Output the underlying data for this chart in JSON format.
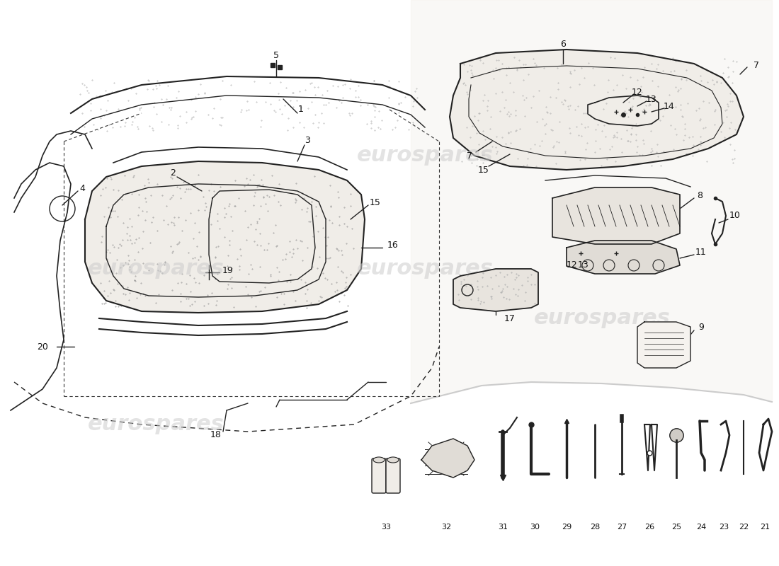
{
  "title": "",
  "background_color": "#ffffff",
  "watermark_text": "eurospares",
  "watermark_color": "#cccccc",
  "part_numbers": {
    "main_trunk": [
      "2",
      "3",
      "1",
      "4",
      "5"
    ],
    "right_panel": [
      "6",
      "7",
      "8",
      "9",
      "10",
      "11",
      "12",
      "13",
      "14",
      "15",
      "16",
      "17"
    ],
    "tools": [
      "18",
      "19",
      "20",
      "21",
      "22",
      "23",
      "24",
      "25",
      "26",
      "27",
      "28",
      "29",
      "30",
      "31",
      "32",
      "33"
    ]
  },
  "line_color": "#222222",
  "label_color": "#111111",
  "speckle_color": "#aaaaaa",
  "fig_width": 11.0,
  "fig_height": 8.0
}
